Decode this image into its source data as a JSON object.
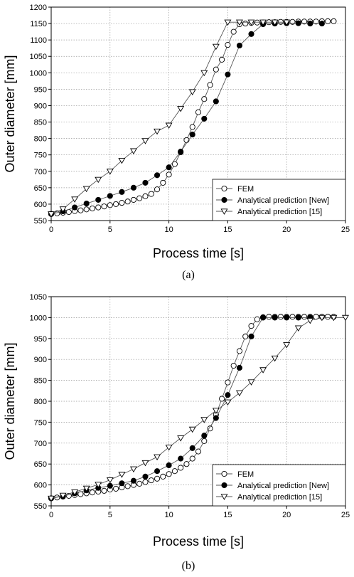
{
  "chart_data": [
    {
      "type": "line",
      "caption": "(a)",
      "xlabel": "Process time [s]",
      "ylabel": "Outer diameter [mm]",
      "xlim": [
        0,
        25
      ],
      "ylim": [
        550,
        1200
      ],
      "xticks": [
        0,
        5,
        10,
        15,
        20,
        25
      ],
      "yticks": [
        550,
        600,
        650,
        700,
        750,
        800,
        850,
        900,
        950,
        1000,
        1050,
        1100,
        1150,
        1200
      ],
      "grid": true,
      "legend_position": "bottom-right",
      "series": [
        {
          "name": "FEM",
          "marker": "circle-open",
          "x": [
            0,
            0.5,
            1,
            1.5,
            2,
            2.5,
            3,
            3.5,
            4,
            4.5,
            5,
            5.5,
            6,
            6.5,
            7,
            7.5,
            8,
            8.5,
            9,
            9.5,
            10,
            10.5,
            11,
            11.5,
            12,
            12.5,
            13,
            13.5,
            14,
            14.5,
            15,
            15.5,
            16,
            16.5,
            17,
            17.5,
            18,
            18.5,
            19,
            19.5,
            20,
            20.5,
            21,
            21.5,
            22,
            22.5,
            23,
            23.5,
            24
          ],
          "y": [
            570,
            572,
            574,
            576,
            579,
            581,
            584,
            587,
            590,
            593,
            597,
            600,
            604,
            608,
            613,
            618,
            624,
            631,
            645,
            665,
            690,
            722,
            758,
            795,
            835,
            880,
            920,
            963,
            1010,
            1040,
            1085,
            1125,
            1148,
            1150,
            1152,
            1153,
            1153,
            1154,
            1154,
            1155,
            1155,
            1155,
            1156,
            1156,
            1156,
            1156,
            1157,
            1157,
            1157
          ]
        },
        {
          "name": "Analytical prediction [New]",
          "marker": "circle-filled",
          "x": [
            0,
            1,
            2,
            3,
            4,
            5,
            6,
            7,
            8,
            9,
            10,
            11,
            12,
            13,
            14,
            15,
            16,
            17,
            18,
            19,
            20,
            21,
            22,
            23
          ],
          "y": [
            570,
            578,
            590,
            602,
            613,
            625,
            637,
            650,
            665,
            688,
            712,
            760,
            812,
            860,
            913,
            995,
            1083,
            1118,
            1148,
            1150,
            1151,
            1151,
            1150,
            1150
          ]
        },
        {
          "name": "Analytical prediction [15]",
          "marker": "triangle-down-open",
          "x": [
            0,
            1,
            2,
            3,
            4,
            5,
            6,
            7,
            8,
            9,
            10,
            11,
            12,
            13,
            14,
            15,
            16,
            17,
            18,
            19,
            20
          ],
          "y": [
            570,
            585,
            615,
            647,
            675,
            700,
            733,
            762,
            793,
            822,
            840,
            891,
            942,
            1000,
            1080,
            1154,
            1154,
            1154,
            1154,
            1154,
            1154
          ]
        }
      ]
    },
    {
      "type": "line",
      "caption": "(b)",
      "xlabel": "Process time [s]",
      "ylabel": "Outer diameter [mm]",
      "xlim": [
        0,
        25
      ],
      "ylim": [
        550,
        1050
      ],
      "xticks": [
        0,
        5,
        10,
        15,
        20,
        25
      ],
      "yticks": [
        550,
        600,
        650,
        700,
        750,
        800,
        850,
        900,
        950,
        1000,
        1050
      ],
      "grid": true,
      "legend_position": "bottom-right",
      "series": [
        {
          "name": "FEM",
          "marker": "circle-open",
          "x": [
            0,
            0.5,
            1,
            1.5,
            2,
            2.5,
            3,
            3.5,
            4,
            4.5,
            5,
            5.5,
            6,
            6.5,
            7,
            7.5,
            8,
            8.5,
            9,
            9.5,
            10,
            10.5,
            11,
            11.5,
            12,
            12.5,
            13,
            13.5,
            14,
            14.5,
            15,
            15.5,
            16,
            16.5,
            17,
            17.5,
            18,
            18.5,
            19,
            19.5,
            20,
            20.5,
            21,
            21.5,
            22,
            22.5,
            23,
            23.5,
            24
          ],
          "y": [
            568,
            570,
            572,
            574,
            576,
            578,
            580,
            582,
            584,
            586,
            589,
            591,
            594,
            597,
            600,
            603,
            607,
            611,
            615,
            620,
            626,
            633,
            641,
            650,
            663,
            680,
            705,
            735,
            768,
            806,
            845,
            885,
            920,
            955,
            980,
            996,
            1001,
            1002,
            1002,
            1002,
            1002,
            1002,
            1002,
            1002,
            1002,
            1002,
            1002,
            1002,
            1002
          ]
        },
        {
          "name": "Analytical prediction [New]",
          "marker": "circle-filled",
          "x": [
            0,
            1,
            2,
            3,
            4,
            5,
            6,
            7,
            8,
            9,
            10,
            11,
            12,
            13,
            14,
            15,
            16,
            17,
            18,
            19,
            20,
            21,
            22
          ],
          "y": [
            568,
            573,
            580,
            587,
            593,
            598,
            604,
            610,
            620,
            633,
            647,
            663,
            688,
            718,
            760,
            815,
            880,
            955,
            1000,
            1000,
            1000,
            1000,
            1000
          ]
        },
        {
          "name": "Analytical prediction [15]",
          "marker": "triangle-down-open",
          "x": [
            0,
            1,
            2,
            3,
            4,
            5,
            6,
            7,
            8,
            9,
            10,
            11,
            12,
            13,
            14,
            15,
            16,
            17,
            18,
            19,
            20,
            21,
            22,
            23,
            24,
            25
          ],
          "y": [
            568,
            575,
            583,
            592,
            601,
            612,
            625,
            638,
            653,
            667,
            690,
            712,
            733,
            756,
            778,
            798,
            820,
            846,
            875,
            903,
            935,
            975,
            993,
            1000,
            1000,
            1000
          ]
        }
      ]
    }
  ]
}
